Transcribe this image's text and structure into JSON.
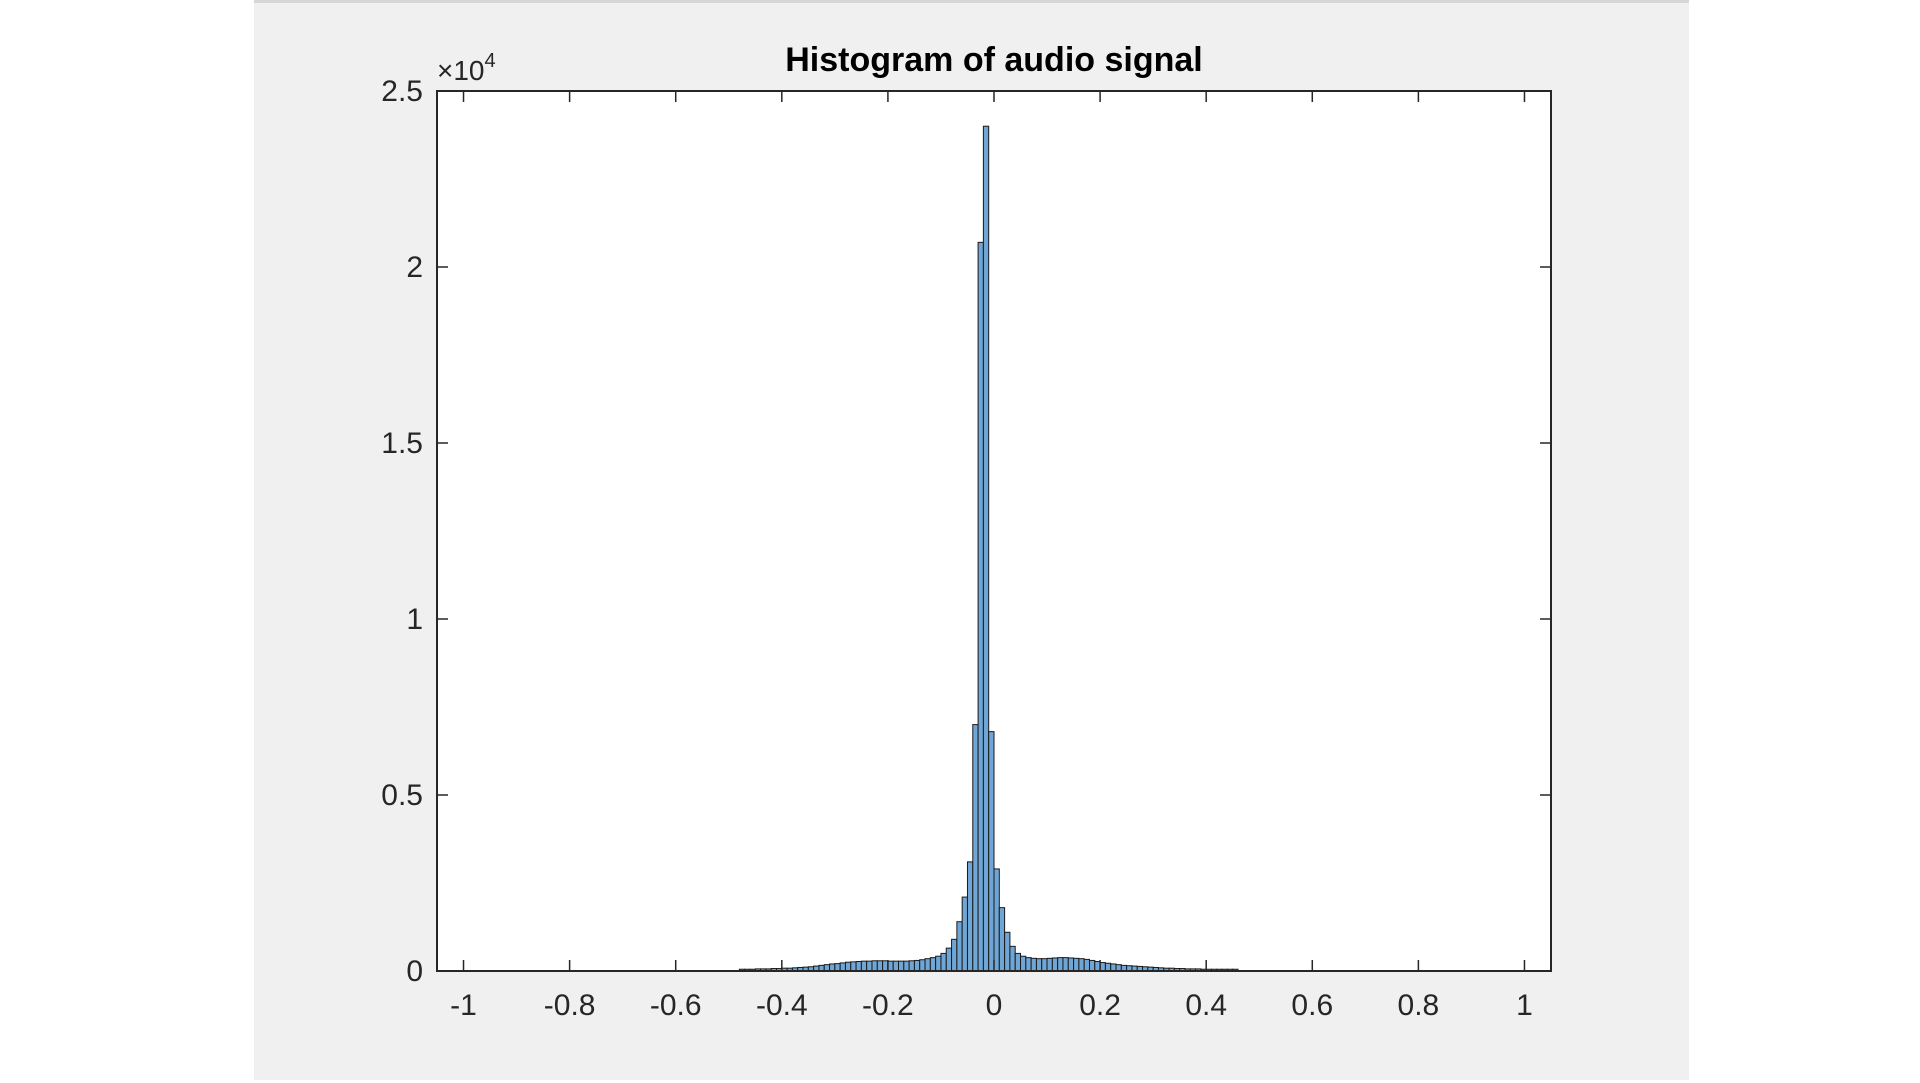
{
  "chart_data": {
    "type": "bar",
    "title": "Histogram of audio signal",
    "xlabel": "",
    "ylabel": "",
    "xlim": [
      -1.05,
      1.05
    ],
    "ylim": [
      0,
      25000
    ],
    "grid": false,
    "y_exponent_label": {
      "base": "×10",
      "exponent": "4"
    },
    "x_ticks": [
      -1,
      -0.8,
      -0.6,
      -0.4,
      -0.2,
      0,
      0.2,
      0.4,
      0.6,
      0.8,
      1
    ],
    "x_tick_labels": [
      "-1",
      "-0.8",
      "-0.6",
      "-0.4",
      "-0.2",
      "0",
      "0.2",
      "0.4",
      "0.6",
      "0.8",
      "1"
    ],
    "y_ticks": [
      0,
      5000,
      10000,
      15000,
      20000,
      25000
    ],
    "y_tick_labels": [
      "0",
      "0.5",
      "1",
      "1.5",
      "2",
      "2.5"
    ],
    "bar_color": "#6fa6d6",
    "edge_color": "#1a1a1a",
    "bin_width": 0.01,
    "bins": [
      -0.475,
      -0.465,
      -0.455,
      -0.445,
      -0.435,
      -0.425,
      -0.415,
      -0.405,
      -0.395,
      -0.385,
      -0.375,
      -0.365,
      -0.355,
      -0.345,
      -0.335,
      -0.325,
      -0.315,
      -0.305,
      -0.295,
      -0.285,
      -0.275,
      -0.265,
      -0.255,
      -0.245,
      -0.235,
      -0.225,
      -0.215,
      -0.205,
      -0.195,
      -0.185,
      -0.175,
      -0.165,
      -0.155,
      -0.145,
      -0.135,
      -0.125,
      -0.115,
      -0.105,
      -0.095,
      -0.085,
      -0.075,
      -0.065,
      -0.055,
      -0.045,
      -0.035,
      -0.025,
      -0.015,
      -0.005,
      0.005,
      0.015,
      0.025,
      0.035,
      0.045,
      0.055,
      0.065,
      0.075,
      0.085,
      0.095,
      0.105,
      0.115,
      0.125,
      0.135,
      0.145,
      0.155,
      0.165,
      0.175,
      0.185,
      0.195,
      0.205,
      0.215,
      0.225,
      0.235,
      0.245,
      0.255,
      0.265,
      0.275,
      0.285,
      0.295,
      0.305,
      0.315,
      0.325,
      0.335,
      0.345,
      0.355,
      0.365,
      0.375,
      0.385,
      0.395,
      0.405,
      0.415,
      0.425,
      0.435,
      0.445,
      0.455
    ],
    "counts": [
      50,
      50,
      50,
      60,
      60,
      60,
      70,
      70,
      80,
      80,
      90,
      100,
      110,
      120,
      140,
      160,
      180,
      200,
      210,
      230,
      250,
      260,
      270,
      280,
      280,
      290,
      290,
      290,
      280,
      280,
      280,
      280,
      290,
      300,
      320,
      350,
      380,
      420,
      500,
      650,
      900,
      1400,
      2100,
      3100,
      7000,
      20700,
      24000,
      6800,
      2900,
      1800,
      1100,
      700,
      500,
      420,
      380,
      360,
      350,
      350,
      360,
      370,
      380,
      380,
      370,
      360,
      350,
      330,
      300,
      270,
      240,
      220,
      200,
      180,
      160,
      150,
      140,
      130,
      120,
      110,
      100,
      90,
      80,
      80,
      70,
      70,
      60,
      60,
      60,
      50,
      50,
      50,
      50,
      50,
      50,
      50
    ]
  }
}
